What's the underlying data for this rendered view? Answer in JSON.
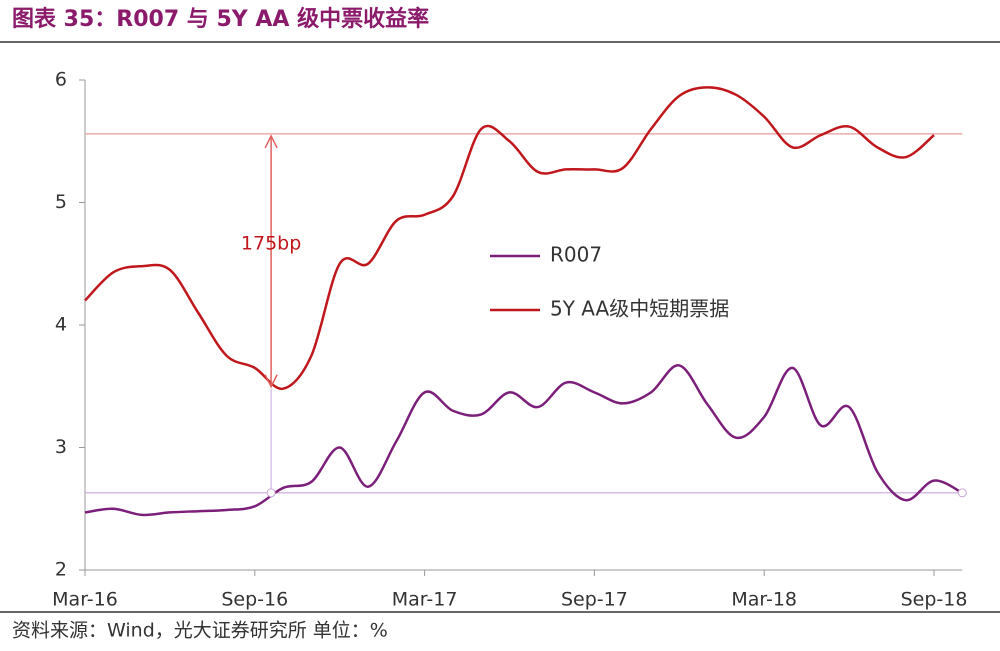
{
  "chart_data": {
    "type": "line",
    "title": "图表 35：R007 与 5Y AA 级中票收益率",
    "source": "资料来源：Wind，光大证券研究所   单位：%",
    "categories": [
      "Mar-16",
      null,
      null,
      null,
      null,
      null,
      "Sep-16",
      null,
      null,
      null,
      null,
      null,
      "Mar-17",
      null,
      null,
      null,
      null,
      null,
      "Sep-17",
      null,
      null,
      null,
      null,
      null,
      "Mar-18",
      null,
      null,
      null,
      null,
      null,
      "Sep-18",
      null
    ],
    "series": [
      {
        "name": "R007",
        "color": "#7b1f7a",
        "values": [
          2.47,
          2.5,
          2.45,
          2.47,
          2.48,
          2.49,
          2.52,
          2.67,
          2.72,
          3.0,
          2.68,
          3.05,
          3.45,
          3.3,
          3.27,
          3.45,
          3.33,
          3.53,
          3.45,
          3.36,
          3.45,
          3.67,
          3.35,
          3.08,
          3.25,
          3.65,
          3.18,
          3.33,
          2.8,
          2.57,
          2.73,
          2.63
        ]
      },
      {
        "name": "5Y AA级中短期票据",
        "color": "#c0171c",
        "values": [
          4.2,
          4.43,
          4.48,
          4.45,
          4.1,
          3.75,
          3.65,
          3.48,
          3.75,
          4.5,
          4.5,
          4.85,
          4.9,
          5.05,
          5.6,
          5.5,
          5.25,
          5.27,
          5.27,
          5.28,
          5.6,
          5.87,
          5.94,
          5.88,
          5.7,
          5.45,
          5.55,
          5.62,
          5.45,
          5.37,
          5.55,
          null
        ]
      }
    ],
    "reference_lines": [
      {
        "value": 5.56,
        "color": "#e89a9a"
      },
      {
        "value": 2.63,
        "color": "#c9a6d8"
      }
    ],
    "annotation": "175bp",
    "ylim": [
      2,
      6
    ],
    "yticks": [
      2,
      3,
      4,
      5,
      6
    ],
    "grid": false,
    "legend": "center"
  }
}
